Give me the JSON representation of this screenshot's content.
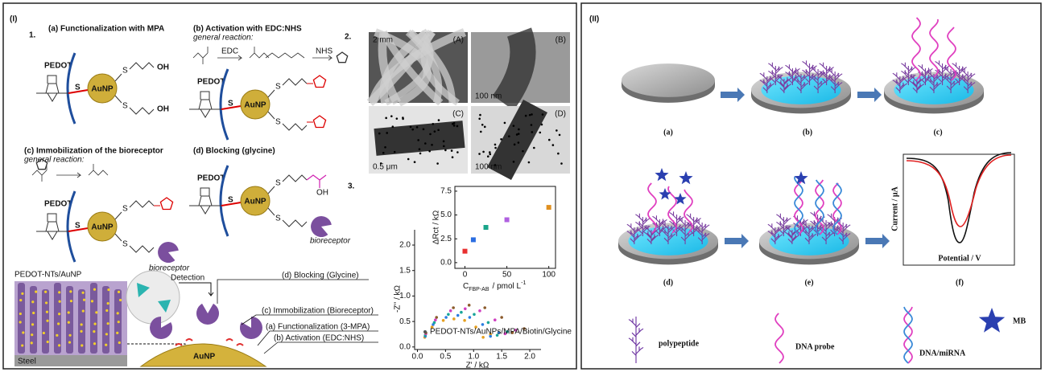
{
  "panel_I": {
    "label": "(I)",
    "section_1": {
      "number": "1.",
      "a": {
        "title": "(a) Functionalization with MPA",
        "pedot": "PEDOT",
        "s": "S",
        "aunp": "AuNP",
        "oh": "OH"
      },
      "b": {
        "title": "(b) Activation with EDC:NHS",
        "subtitle": "general reaction:",
        "reagent_1": "EDC",
        "reagent_2": "NHS",
        "pedot": "PEDOT",
        "s": "S",
        "aunp": "AuNP"
      },
      "c": {
        "title": "(c) Immobilization of the bioreceptor",
        "subtitle": "general reaction:",
        "pedot": "PEDOT",
        "s": "S",
        "aunp": "AuNP",
        "bioreceptor": "bioreceptor"
      },
      "d": {
        "title": "(d) Blocking (glycine)",
        "pedot": "PEDOT",
        "s": "S",
        "aunp": "AuNP",
        "oh": "OH",
        "bioreceptor": "bioreceptor"
      }
    },
    "scheme": {
      "electrode": "PEDOT-NTs/AuNP",
      "substrate": "Steel",
      "detection": "Detection",
      "aunp": "AuNP",
      "steps": [
        "(d) Blocking (Glycine)",
        "(c) Immobilization (Bioreceptor)",
        "(a) Functionalization (3-MPA)",
        "(b) Activation (EDC:NHS)"
      ]
    },
    "section_2": {
      "number": "2.",
      "images": [
        {
          "label": "(A)",
          "scale": "2 mm"
        },
        {
          "label": "(B)",
          "scale": "100 nm"
        },
        {
          "label": "(C)",
          "scale": "0.5 μm"
        },
        {
          "label": "(D)",
          "scale": "100 nm"
        }
      ]
    },
    "section_3": {
      "number": "3.",
      "nyquist": {
        "x_label": "Z' / kΩ",
        "y_label": "-Z'' / kΩ",
        "legend": "PEDOT-NTs/AuNPs/MPA/Biotin/Glycine",
        "xlim": [
          -0.05,
          2.2
        ],
        "ylim": [
          -0.05,
          2.3
        ],
        "xticks": [
          {
            "value": 0,
            "label": "0.0"
          },
          {
            "value": 0.5,
            "label": "0.5"
          },
          {
            "value": 1,
            "label": "1.0"
          },
          {
            "value": 1.5,
            "label": "1.5"
          },
          {
            "value": 2,
            "label": "2.0"
          }
        ],
        "yticks": [
          {
            "value": 0,
            "label": "0.0"
          },
          {
            "value": 0.5,
            "label": "0.5"
          },
          {
            "value": 1,
            "label": "1.0"
          },
          {
            "value": 1.5,
            "label": "1.5"
          },
          {
            "value": 2,
            "label": "2.0"
          }
        ],
        "series": [
          {
            "color": "#e6a020",
            "x": [
              0.13,
              0.26,
              0.46,
              0.65,
              0.84,
              1.04,
              1.17,
              1.3
            ],
            "y": [
              0.19,
              0.39,
              0.52,
              0.55,
              0.52,
              0.39,
              0.19,
              0.25
            ]
          },
          {
            "color": "#2a7de1",
            "x": [
              0.14,
              0.28,
              0.51,
              0.72,
              0.93,
              1.16,
              1.3,
              1.45
            ],
            "y": [
              0.21,
              0.44,
              0.58,
              0.62,
              0.58,
              0.44,
              0.21,
              0.28
            ]
          },
          {
            "color": "#1aa59a",
            "x": [
              0.14,
              0.3,
              0.55,
              0.78,
              1.01,
              1.26,
              1.42,
              1.6
            ],
            "y": [
              0.23,
              0.48,
              0.64,
              0.68,
              0.64,
              0.48,
              0.23,
              0.3
            ]
          },
          {
            "color": "#d040c0",
            "x": [
              0.15,
              0.32,
              0.59,
              0.85,
              1.11,
              1.38,
              1.56,
              1.75
            ],
            "y": [
              0.26,
              0.53,
              0.71,
              0.75,
              0.71,
              0.53,
              0.26,
              0.33
            ]
          },
          {
            "color": "#8b5a2b",
            "x": [
              0.15,
              0.34,
              0.64,
              0.92,
              1.2,
              1.5,
              1.69,
              1.9
            ],
            "y": [
              0.28,
              0.58,
              0.77,
              0.82,
              0.77,
              0.58,
              0.28,
              0.36
            ]
          }
        ]
      },
      "inset": {
        "y_label": "ΔRct / kΩ",
        "x_label": {
          "main": "C",
          "subscript": "FBP-AB",
          "unit": "/ pmol L",
          "superscript": "-1"
        },
        "xlim": [
          -12,
          108
        ],
        "ylim": [
          -0.6,
          8.0
        ],
        "xticks": [
          0,
          50,
          100
        ],
        "yticks": [
          {
            "value": 0,
            "label": "0.0"
          },
          {
            "value": 2.5,
            "label": "2.5"
          },
          {
            "value": 5,
            "label": "5.0"
          },
          {
            "value": 7.5,
            "label": "7.5"
          }
        ],
        "x": [
          0,
          10,
          25,
          50,
          100
        ],
        "values": [
          1.2,
          2.4,
          3.7,
          4.5,
          5.8
        ],
        "colors": [
          "#e83030",
          "#2a6de1",
          "#1aa58a",
          "#b060e0",
          "#e09020"
        ]
      }
    }
  },
  "panel_II": {
    "label": "(II)",
    "steps": [
      "(a)",
      "(b)",
      "(c)",
      "(d)",
      "(e)",
      "(f)"
    ],
    "plot": {
      "y_label": "Current / μA",
      "x_label": "Potential / V"
    },
    "legend": {
      "polypeptide": "polypeptide",
      "probe": "DNA probe",
      "duplex": "DNA/miRNA",
      "mb": "MB"
    }
  }
}
